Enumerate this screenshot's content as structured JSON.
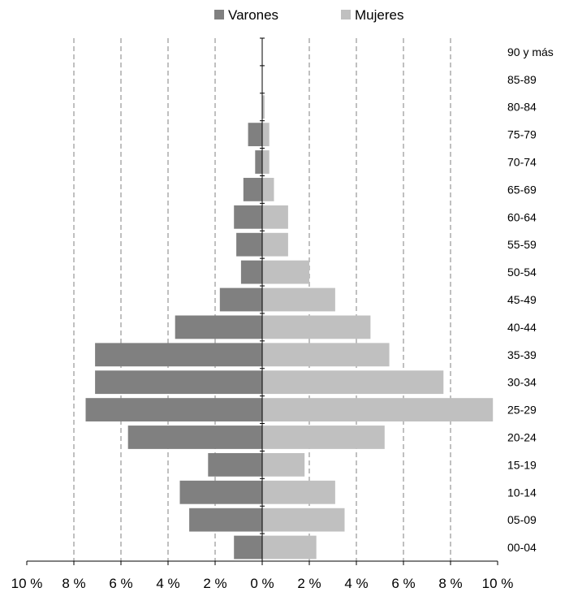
{
  "chart_data": {
    "type": "bar",
    "orientation": "horizontal-population-pyramid",
    "categories": [
      "90 y más",
      "85-89",
      "80-84",
      "75-79",
      "70-74",
      "65-69",
      "60-64",
      "55-59",
      "50-54",
      "45-49",
      "40-44",
      "35-39",
      "30-34",
      "25-29",
      "20-24",
      "15-19",
      "10-14",
      "05-09",
      "00-04"
    ],
    "series": [
      {
        "name": "Varones",
        "color": "#808080",
        "values": [
          0,
          0,
          0,
          0.6,
          0.3,
          0.8,
          1.2,
          1.1,
          0.9,
          1.8,
          3.7,
          7.1,
          7.1,
          7.5,
          5.7,
          2.3,
          3.5,
          3.1,
          1.2
        ]
      },
      {
        "name": "Mujeres",
        "color": "#c0c0c0",
        "values": [
          0,
          0,
          0.1,
          0.3,
          0.3,
          0.5,
          1.1,
          1.1,
          2.0,
          3.1,
          4.6,
          5.4,
          7.7,
          9.8,
          5.2,
          1.8,
          3.1,
          3.5,
          2.3
        ]
      }
    ],
    "x_ticks": [
      "10 %",
      "8 %",
      "6 %",
      "4 %",
      "2 %",
      "0 %",
      "2 %",
      "4 %",
      "6 %",
      "8 %",
      "10 %"
    ],
    "xlim": [
      -10,
      10
    ],
    "unit": "%",
    "grid": "vertical-dashed",
    "legend": "top-center"
  }
}
